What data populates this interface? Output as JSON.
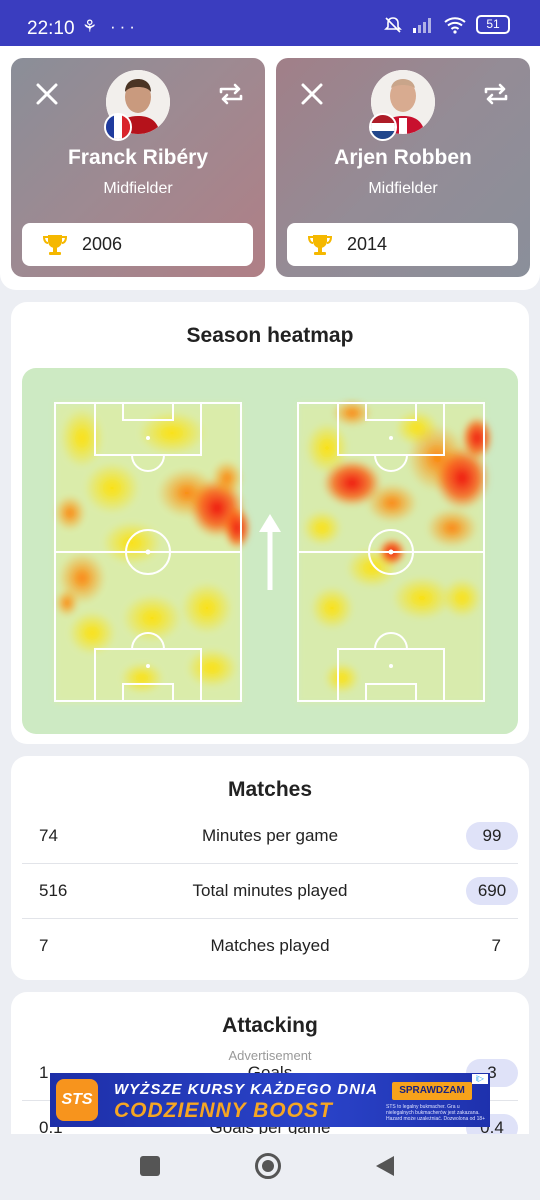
{
  "status_bar": {
    "time": "22:10",
    "left_icons": "⚘ ···",
    "battery": "51"
  },
  "players": [
    {
      "name": "Franck Ribéry",
      "position": "Midfielder",
      "season": "2006",
      "flag": "France"
    },
    {
      "name": "Arjen Robben",
      "position": "Midfielder",
      "season": "2014",
      "flag": "Netherlands"
    }
  ],
  "heatmap": {
    "title": "Season heatmap"
  },
  "matches": {
    "title": "Matches",
    "rows": [
      {
        "left": "74",
        "label": "Minutes per game",
        "right": "99",
        "right_highlight": true
      },
      {
        "left": "516",
        "label": "Total minutes played",
        "right": "690",
        "right_highlight": true
      },
      {
        "left": "7",
        "label": "Matches played",
        "right": "7",
        "right_highlight": false
      }
    ]
  },
  "attacking": {
    "title": "Attacking",
    "ad_label": "Advertisement",
    "rows": [
      {
        "left": "1",
        "label": "Goals",
        "right": "3"
      },
      {
        "left": "0.1",
        "label": "Goals per game",
        "right": "0.4"
      }
    ]
  },
  "ad": {
    "logo": "STS",
    "line1": "WYŻSZE KURSY KAŻDEGO DNIA",
    "line2": "CODZIENNY BOOST",
    "cta": "SPRAWDZAM",
    "fine_print": "STS to legalny bukmacher. Gra u nielegalnych bukmacherów jest zakazana. Hazard może uzależniać. Dozwolona od 18+",
    "adchoice": "i▷"
  },
  "colors": {
    "primary": "#3a3dbf",
    "pitch": "#cdeac3",
    "pill": "#dfe2f8",
    "trophy": "#f5b800"
  }
}
